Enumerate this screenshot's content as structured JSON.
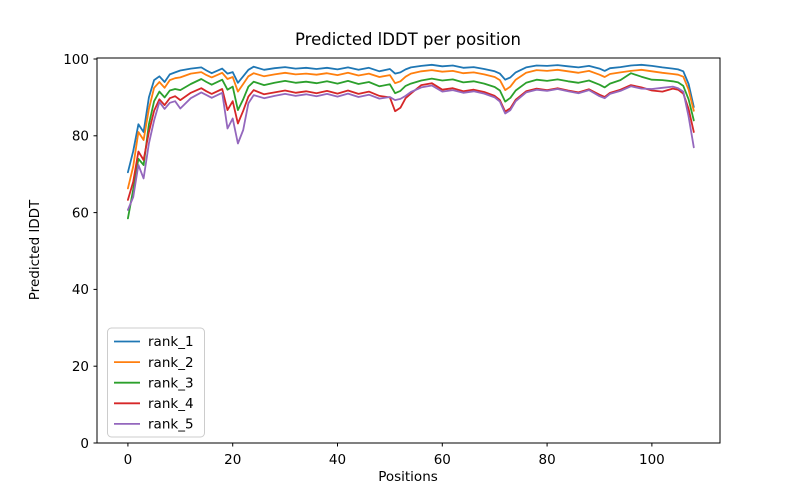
{
  "chart_data": {
    "type": "line",
    "title": "Predicted lDDT per position",
    "xlabel": "Positions",
    "ylabel": "Predicted lDDT",
    "x_axis": {
      "tick_labels": [
        "0",
        "20",
        "40",
        "60",
        "80",
        "100"
      ],
      "tick_values": [
        0,
        20,
        40,
        60,
        80,
        100
      ],
      "range": [
        -5.9,
        113.0
      ]
    },
    "y_axis": {
      "tick_labels": [
        "0",
        "20",
        "40",
        "60",
        "80",
        "100"
      ],
      "tick_values": [
        0,
        20,
        40,
        60,
        80,
        100
      ],
      "range": [
        0,
        100.26
      ]
    },
    "grid": false,
    "legend_position": "lower left",
    "x": [
      0,
      1,
      2,
      3,
      4,
      5,
      6,
      7,
      8,
      9,
      10,
      12,
      14,
      15,
      16,
      18,
      19,
      20,
      21,
      22,
      23,
      24,
      26,
      28,
      30,
      32,
      34,
      36,
      38,
      40,
      42,
      44,
      46,
      48,
      50,
      51,
      52,
      53,
      54,
      56,
      58,
      60,
      62,
      64,
      66,
      68,
      70,
      71,
      72,
      73,
      74,
      76,
      78,
      80,
      82,
      84,
      86,
      88,
      90,
      91,
      92,
      94,
      96,
      98,
      100,
      102,
      104,
      105,
      106,
      107,
      108
    ],
    "series": [
      {
        "name": "rank_1",
        "color": "#1f77b4",
        "values": [
          70.5,
          76,
          83,
          81,
          90,
          94.5,
          95.5,
          94,
          96,
          96.5,
          97,
          97.5,
          97.8,
          97,
          96.3,
          97.5,
          96.2,
          96.6,
          93.8,
          95.5,
          97.2,
          98,
          97.2,
          97.6,
          97.9,
          97.5,
          97.7,
          97.4,
          97.7,
          97.3,
          97.8,
          97.2,
          97.7,
          96.8,
          97.4,
          96.2,
          96.5,
          97.3,
          97.8,
          98.2,
          98.5,
          98.1,
          98.3,
          97.7,
          97.9,
          97.4,
          96.8,
          96.2,
          94.6,
          95.2,
          96.5,
          97.8,
          98.3,
          98.2,
          98.4,
          98.1,
          97.8,
          98.2,
          97.5,
          96.9,
          97.6,
          97.9,
          98.3,
          98.5,
          98.2,
          97.8,
          97.5,
          97.3,
          96.8,
          93.5,
          87.5
        ]
      },
      {
        "name": "rank_2",
        "color": "#ff7f0e",
        "values": [
          66.3,
          72,
          81,
          78.9,
          87,
          92.5,
          94,
          92.5,
          94.5,
          95,
          95.2,
          96.2,
          96.6,
          95.8,
          95.2,
          96.4,
          94.8,
          95.3,
          91.5,
          93.5,
          95.5,
          96.3,
          95.5,
          96,
          96.4,
          96,
          96.2,
          95.9,
          96.3,
          95.8,
          96.4,
          95.7,
          96.2,
          95.3,
          95.8,
          93.7,
          94.2,
          95.4,
          96.2,
          96.8,
          97.1,
          96.7,
          96.9,
          96.3,
          96.5,
          96,
          95.3,
          94.5,
          91.9,
          92.8,
          94.6,
          96.4,
          97.1,
          96.9,
          97.2,
          96.8,
          96.4,
          96.9,
          95.9,
          95.3,
          96.1,
          96.5,
          96.9,
          97.2,
          96.8,
          96.4,
          96.1,
          95.9,
          95.4,
          92,
          86.5
        ]
      },
      {
        "name": "rank_3",
        "color": "#2ca02c",
        "values": [
          58.5,
          66,
          74,
          72.4,
          83,
          89,
          91.5,
          90,
          91.8,
          92.2,
          91.9,
          93.5,
          94.8,
          94,
          93.3,
          94.6,
          92,
          92.8,
          86.7,
          89.5,
          92.8,
          94.1,
          93.2,
          93.8,
          94.3,
          93.8,
          94.1,
          93.7,
          94.2,
          93.6,
          94.3,
          93.5,
          94,
          92.9,
          93.4,
          91.1,
          91.7,
          93,
          93.6,
          94.4,
          94.9,
          94.4,
          94.7,
          93.9,
          94.2,
          93.6,
          92.7,
          91.8,
          88.9,
          89.9,
          91.8,
          93.8,
          94.6,
          94.3,
          94.7,
          94.2,
          93.8,
          94.4,
          93.3,
          92.6,
          93.6,
          94.5,
          96.3,
          95.4,
          94.6,
          94.5,
          94.2,
          93.9,
          93,
          89.5,
          84
        ]
      },
      {
        "name": "rank_4",
        "color": "#d62728",
        "values": [
          63.3,
          68,
          75.9,
          73.7,
          81,
          86.5,
          89.5,
          88,
          89.8,
          90.3,
          89.3,
          91.2,
          92.4,
          91.6,
          90.9,
          92.2,
          86.7,
          89,
          83.2,
          86.5,
          90.2,
          91.9,
          90.8,
          91.3,
          91.8,
          91.2,
          91.6,
          91.1,
          91.7,
          91,
          91.8,
          90.9,
          91.5,
          90.4,
          90,
          86.4,
          87.3,
          89.8,
          91,
          93.2,
          93.7,
          92,
          92.4,
          91.6,
          92,
          91.4,
          90.4,
          89.3,
          86.3,
          87.2,
          89.4,
          91.6,
          92.3,
          91.9,
          92.4,
          91.8,
          91.3,
          92.1,
          90.7,
          90.1,
          91.2,
          92,
          93.2,
          92.6,
          91.8,
          91.5,
          92.3,
          92,
          91,
          87,
          81
        ]
      },
      {
        "name": "rank_5",
        "color": "#9467bd",
        "values": [
          60.7,
          64,
          72.4,
          68.9,
          78,
          84,
          88.8,
          87,
          88.6,
          89,
          87.1,
          89.8,
          91.3,
          90.6,
          89.9,
          91.2,
          81.9,
          84.5,
          78,
          81.5,
          88.5,
          90.6,
          89.8,
          90.4,
          90.9,
          90.4,
          90.8,
          90.3,
          90.9,
          90.2,
          91,
          90.1,
          90.7,
          89.7,
          90.1,
          89.3,
          89.6,
          90.4,
          91.4,
          92.6,
          93.1,
          91.5,
          91.9,
          91.2,
          91.6,
          91,
          90,
          88.9,
          85.8,
          86.7,
          89,
          91.3,
          92,
          91.7,
          92.2,
          91.6,
          91.1,
          91.9,
          90.3,
          89.8,
          90.9,
          91.7,
          92.9,
          92.3,
          92.2,
          92.5,
          92.8,
          92.4,
          91.5,
          85,
          77
        ]
      }
    ]
  }
}
